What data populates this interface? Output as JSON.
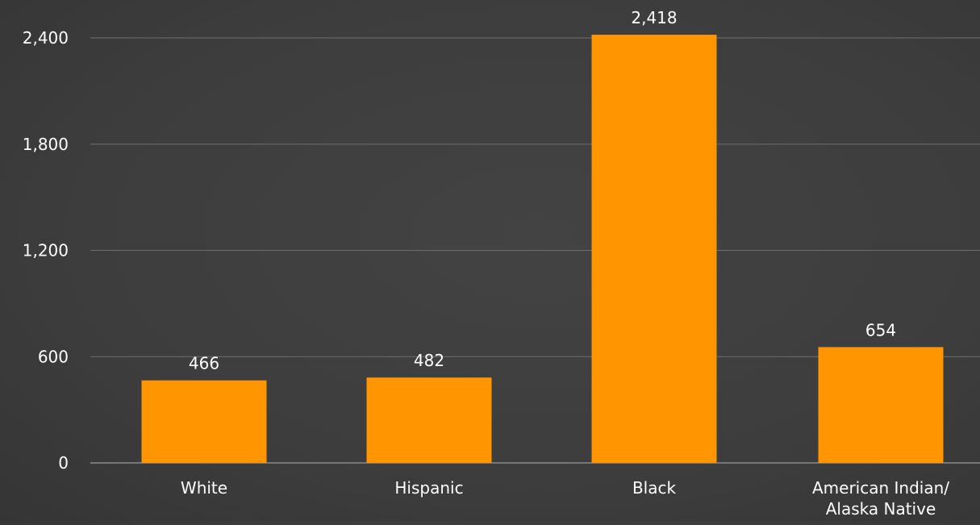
{
  "chart_data": {
    "type": "bar",
    "title": "",
    "xlabel": "",
    "ylabel": "",
    "categories": [
      [
        "White"
      ],
      [
        "Hispanic"
      ],
      [
        "Black"
      ],
      [
        "American Indian/",
        "Alaska Native"
      ]
    ],
    "values": [
      466,
      482,
      2418,
      654
    ],
    "value_labels": [
      "466",
      "482",
      "2,418",
      "654"
    ],
    "yticks": [
      0,
      600,
      1200,
      1800,
      2400
    ],
    "ytick_labels": [
      "0",
      "600",
      "1,200",
      "1,800",
      "2,400"
    ],
    "ylim": [
      0,
      2400
    ],
    "grid": true,
    "legend": "none",
    "colors": {
      "bar": "#FF9500",
      "background": "#3f3f3f",
      "text": "#ffffff",
      "grid": "#6e6e6e"
    }
  }
}
